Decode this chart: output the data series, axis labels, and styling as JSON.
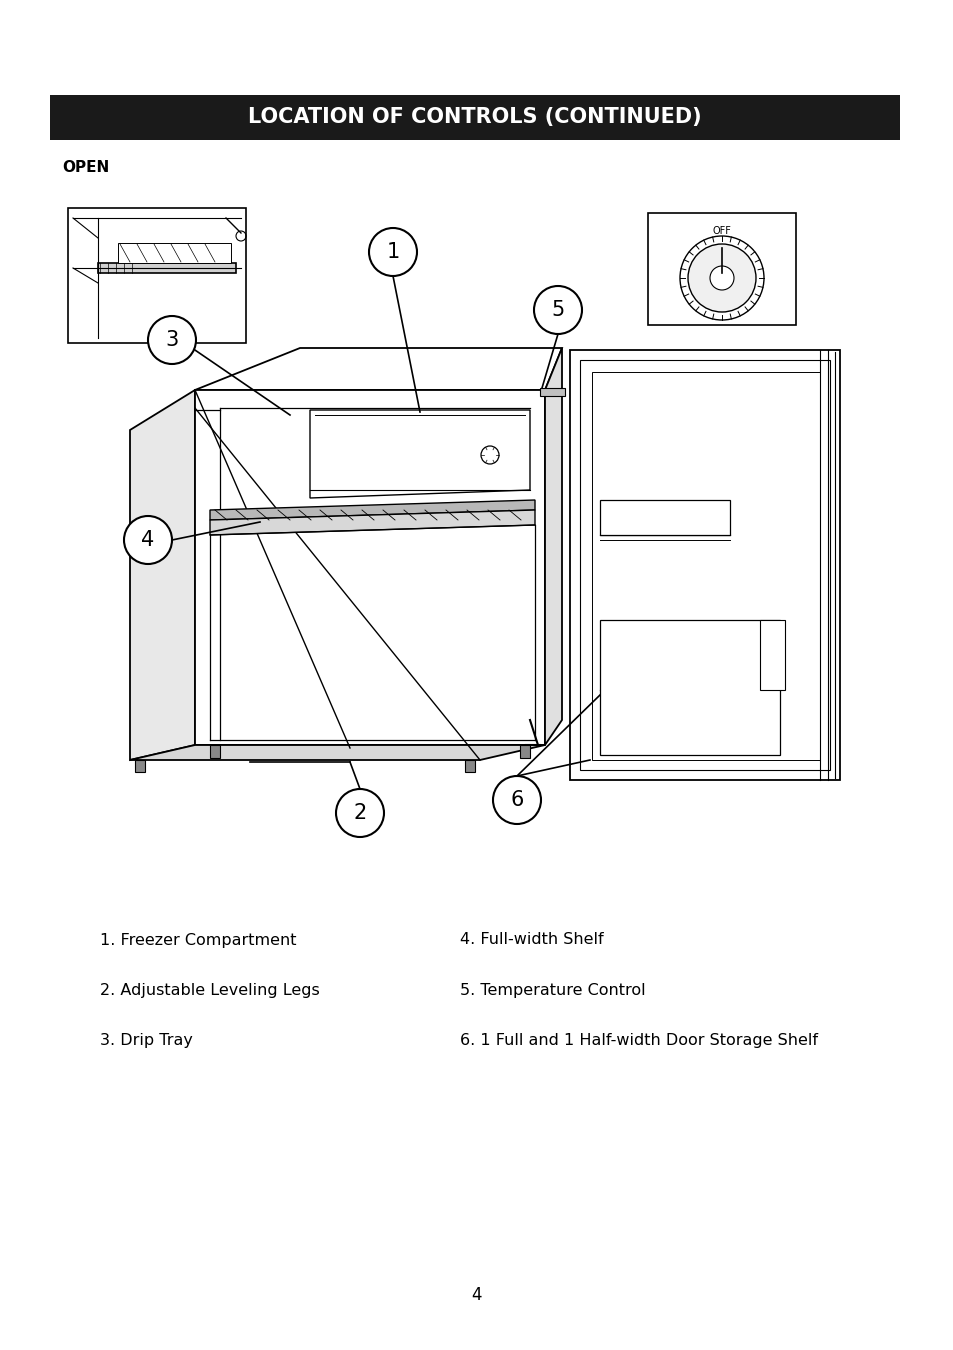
{
  "title": "LOCATION OF CONTROLS (CONTINUED)",
  "title_bg": "#1a1a1a",
  "title_color": "#ffffff",
  "section_label": "OPEN",
  "legend_items_left": [
    "1. Freezer Compartment",
    "2. Adjustable Leveling Legs",
    "3. Drip Tray"
  ],
  "legend_items_right": [
    "4. Full-width Shelf",
    "5. Temperature Control",
    "6. 1 Full and 1 Half-width Door Storage Shelf"
  ],
  "page_number": "4",
  "bg_color": "#ffffff",
  "text_color": "#000000"
}
